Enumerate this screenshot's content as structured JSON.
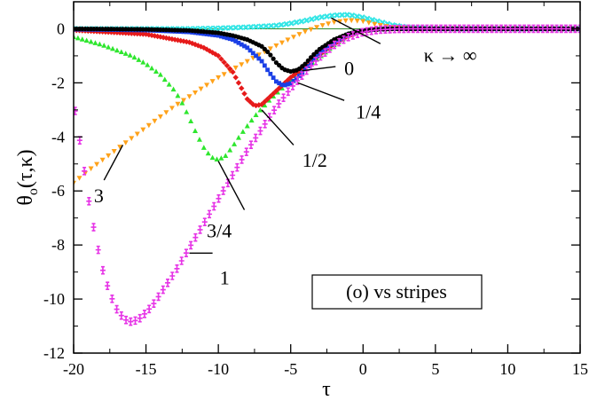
{
  "chart_data": {
    "type": "scatter",
    "title": "",
    "xlabel": "τ",
    "ylabel": "θ_o(τ,κ)",
    "ylabel_main": "θ",
    "ylabel_sub": "o",
    "ylabel_args": "(τ,κ)",
    "xlim": [
      -20,
      15
    ],
    "ylim": [
      -12,
      1
    ],
    "xticks": [
      -20,
      -15,
      -10,
      -5,
      0,
      5,
      10,
      15
    ],
    "xtick_labels": [
      "-20",
      "-15",
      "-10",
      "-5",
      "0",
      "5",
      "10",
      "15"
    ],
    "yticks": [
      -12,
      -10,
      -8,
      -6,
      -4,
      -2,
      0
    ],
    "ytick_labels": [
      "-12",
      "-10",
      "-8",
      "-6",
      "-4",
      "-2",
      "0"
    ],
    "legend_box": "(o) vs stripes",
    "zero_line_color": "#2e8b2e",
    "series": [
      {
        "name": "κ → ∞",
        "color": "#33e6e6",
        "marker": "x",
        "x": [
          -20,
          -18,
          -16,
          -14,
          -12,
          -10,
          -8,
          -6,
          -5,
          -4,
          -3,
          -2,
          -1,
          0,
          1,
          2,
          3,
          4,
          5,
          6,
          8,
          10,
          12,
          14,
          15
        ],
        "y": [
          0,
          0,
          0,
          0,
          0,
          0.02,
          0.06,
          0.12,
          0.2,
          0.3,
          0.42,
          0.5,
          0.52,
          0.42,
          0.28,
          0.14,
          0.06,
          0.02,
          0.01,
          0,
          0,
          0,
          0,
          0,
          0
        ]
      },
      {
        "name": "0",
        "color": "#000000",
        "marker": "circle",
        "x": [
          -20,
          -15,
          -12,
          -10,
          -9,
          -8,
          -7,
          -6.5,
          -6,
          -5.5,
          -5,
          -4.5,
          -4,
          -3.5,
          -3,
          -2,
          -1,
          0,
          1,
          2,
          3,
          4,
          6,
          8,
          10,
          15
        ],
        "y": [
          0,
          -0.02,
          -0.06,
          -0.15,
          -0.25,
          -0.4,
          -0.65,
          -0.9,
          -1.25,
          -1.5,
          -1.58,
          -1.52,
          -1.3,
          -1.0,
          -0.75,
          -0.4,
          -0.18,
          -0.06,
          -0.02,
          0,
          0,
          0,
          0,
          0,
          0,
          0
        ]
      },
      {
        "name": "1/4",
        "color": "#1a3fe6",
        "marker": "square",
        "x": [
          -20,
          -15,
          -12,
          -10,
          -9,
          -8,
          -7,
          -6.5,
          -6,
          -5.5,
          -5,
          -4.5,
          -4,
          -3.5,
          -3,
          -2,
          -1,
          0,
          1,
          2,
          3,
          4,
          6,
          8,
          10,
          15
        ],
        "y": [
          -0.02,
          -0.05,
          -0.12,
          -0.25,
          -0.4,
          -0.7,
          -1.2,
          -1.6,
          -1.95,
          -2.1,
          -2.02,
          -1.8,
          -1.5,
          -1.2,
          -0.9,
          -0.5,
          -0.2,
          -0.07,
          -0.02,
          0,
          0,
          0,
          0,
          0,
          0,
          0
        ]
      },
      {
        "name": "1/2",
        "color": "#e61a1a",
        "marker": "diamond",
        "x": [
          -20,
          -15,
          -12,
          -11,
          -10,
          -9,
          -8.5,
          -8,
          -7.5,
          -7,
          -6.5,
          -6,
          -5.5,
          -5,
          -4.5,
          -4,
          -3,
          -2,
          -1,
          0,
          1,
          2,
          3,
          4,
          6,
          8,
          10,
          15
        ],
        "y": [
          -0.05,
          -0.2,
          -0.5,
          -0.7,
          -1.0,
          -1.6,
          -2.1,
          -2.6,
          -2.85,
          -2.8,
          -2.55,
          -2.3,
          -2.05,
          -1.8,
          -1.6,
          -1.4,
          -0.95,
          -0.55,
          -0.25,
          -0.08,
          -0.02,
          0,
          0,
          0,
          0,
          0,
          0,
          0
        ]
      },
      {
        "name": "3/4",
        "color": "#2ee62e",
        "marker": "triangle",
        "x": [
          -20,
          -18,
          -16,
          -15,
          -14,
          -13,
          -12.5,
          -12,
          -11.5,
          -11,
          -10.5,
          -10,
          -9.5,
          -9,
          -8.5,
          -8,
          -7.5,
          -7,
          -6.5,
          -6,
          -5.5,
          -5,
          -4.5,
          -4,
          -3,
          -2,
          -1,
          0,
          1,
          2,
          3,
          4,
          6,
          8,
          10,
          15
        ],
        "y": [
          -0.3,
          -0.6,
          -1.0,
          -1.3,
          -1.7,
          -2.3,
          -2.75,
          -3.3,
          -3.9,
          -4.4,
          -4.75,
          -4.85,
          -4.7,
          -4.35,
          -3.95,
          -3.6,
          -3.25,
          -2.95,
          -2.65,
          -2.4,
          -2.15,
          -1.9,
          -1.65,
          -1.45,
          -1.05,
          -0.6,
          -0.25,
          -0.08,
          -0.02,
          0,
          0,
          0,
          0,
          0,
          0,
          0
        ]
      },
      {
        "name": "1",
        "color": "#e633e6",
        "marker": "errbar",
        "x": [
          -20,
          -19.5,
          -19,
          -18.5,
          -18,
          -17.5,
          -17,
          -16.5,
          -16,
          -15.5,
          -15,
          -14.5,
          -14,
          -13.5,
          -13,
          -12,
          -11,
          -10,
          -9,
          -8,
          -7,
          -6,
          -5,
          -4,
          -3,
          -2,
          -1,
          0,
          1,
          2,
          3,
          4,
          6,
          8,
          10,
          15
        ],
        "y": [
          -2.7,
          -4.4,
          -6.2,
          -7.7,
          -8.9,
          -9.8,
          -10.4,
          -10.75,
          -10.85,
          -10.75,
          -10.5,
          -10.2,
          -9.8,
          -9.4,
          -9.0,
          -8.1,
          -7.2,
          -6.3,
          -5.4,
          -4.5,
          -3.7,
          -2.9,
          -2.2,
          -1.6,
          -1.05,
          -0.6,
          -0.3,
          -0.12,
          -0.04,
          -0.01,
          0,
          0,
          0,
          0,
          0,
          0
        ]
      },
      {
        "name": "3",
        "color": "#ffa21a",
        "marker": "tri_down",
        "x": [
          -20,
          -19,
          -18,
          -17,
          -16,
          -15,
          -14,
          -13,
          -12,
          -11,
          -10,
          -9,
          -8,
          -7,
          -6,
          -5,
          -4,
          -3,
          -2,
          -1,
          0,
          1,
          2,
          3,
          4,
          5,
          6,
          8,
          10,
          12,
          15
        ],
        "y": [
          -5.7,
          -5.25,
          -4.85,
          -4.45,
          -4.05,
          -3.65,
          -3.25,
          -2.85,
          -2.5,
          -2.15,
          -1.8,
          -1.5,
          -1.2,
          -0.9,
          -0.62,
          -0.35,
          -0.1,
          0.1,
          0.25,
          0.32,
          0.28,
          0.15,
          0.06,
          0.02,
          0,
          0,
          0,
          0,
          0,
          0,
          0
        ]
      }
    ],
    "annotations": [
      {
        "text": "κ → ∞"
      },
      {
        "text": "0"
      },
      {
        "text": "1/4"
      },
      {
        "text": "1/2"
      },
      {
        "text": "3/4"
      },
      {
        "text": "3"
      },
      {
        "text": "1"
      }
    ]
  }
}
